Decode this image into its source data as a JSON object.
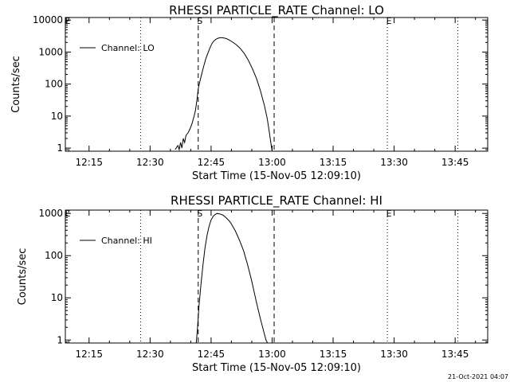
{
  "footer": {
    "timestamp": "21-Oct-2021 04:07"
  },
  "chart_data": [
    {
      "type": "line",
      "title": "RHESSI PARTICLE_RATE Channel: LO",
      "xlabel": "Start Time (15-Nov-05 12:09:10)",
      "ylabel": "Counts/sec",
      "y_scale": "log",
      "xlim": [
        "12:09:10",
        "13:53:00"
      ],
      "ylim": [
        0.8,
        12000
      ],
      "x_ticks": [
        "12:15",
        "12:30",
        "12:45",
        "13:00",
        "13:15",
        "13:30",
        "13:45"
      ],
      "y_ticks": [
        {
          "value": 1,
          "label": "1"
        },
        {
          "value": 10,
          "label": "10"
        },
        {
          "value": 100,
          "label": "100"
        },
        {
          "value": 1000,
          "label": "1000"
        },
        {
          "value": 10000,
          "label": "10000"
        }
      ],
      "legend": {
        "position": "top-left",
        "entries": [
          "Channel: LO"
        ]
      },
      "markers": [
        {
          "time": "12:27:40",
          "style": "dotted",
          "label": ""
        },
        {
          "time": "12:41:50",
          "style": "dashed",
          "label": "S"
        },
        {
          "time": "13:00:30",
          "style": "dashed",
          "label": ""
        },
        {
          "time": "13:28:20",
          "style": "dotted",
          "label": "E"
        },
        {
          "time": "13:45:40",
          "style": "dotted",
          "label": ""
        }
      ],
      "corner_label": "E",
      "series": [
        {
          "name": "Channel: LO",
          "x": [
            "12:36:10",
            "12:36:50",
            "12:37:10",
            "12:37:30",
            "12:37:50",
            "12:38:10",
            "12:38:30",
            "12:38:50",
            "12:39:20",
            "12:39:50",
            "12:40:20",
            "12:40:50",
            "12:41:10",
            "12:41:30",
            "12:41:50",
            "12:42:10",
            "12:42:40",
            "12:43:10",
            "12:43:40",
            "12:44:10",
            "12:44:40",
            "12:45:10",
            "12:45:40",
            "12:46:10",
            "12:46:40",
            "12:47:10",
            "12:47:40",
            "12:48:10",
            "12:48:40",
            "12:49:10",
            "12:49:40",
            "12:50:10",
            "12:51:10",
            "12:52:10",
            "12:53:10",
            "12:54:10",
            "12:55:10",
            "12:56:10",
            "12:57:10",
            "12:58:10",
            "12:58:50",
            "12:59:20",
            "12:59:40",
            "13:00:00"
          ],
          "y": [
            0.9,
            1.2,
            0.9,
            1.5,
            1.0,
            2.0,
            1.5,
            2.5,
            3.0,
            4.0,
            6.0,
            10,
            15,
            30,
            70,
            110,
            200,
            350,
            600,
            900,
            1300,
            1800,
            2200,
            2500,
            2700,
            2800,
            2800,
            2750,
            2650,
            2500,
            2300,
            2100,
            1700,
            1300,
            900,
            550,
            300,
            150,
            60,
            20,
            8,
            3,
            1.5,
            0.8
          ]
        }
      ]
    },
    {
      "type": "line",
      "title": "RHESSI PARTICLE_RATE Channel: HI",
      "xlabel": "Start Time (15-Nov-05 12:09:10)",
      "ylabel": "Counts/sec",
      "y_scale": "log",
      "xlim": [
        "12:09:10",
        "13:53:00"
      ],
      "ylim": [
        0.85,
        1200
      ],
      "x_ticks": [
        "12:15",
        "12:30",
        "12:45",
        "13:00",
        "13:15",
        "13:30",
        "13:45"
      ],
      "y_ticks": [
        {
          "value": 1,
          "label": "1"
        },
        {
          "value": 10,
          "label": "10"
        },
        {
          "value": 100,
          "label": "100"
        },
        {
          "value": 1000,
          "label": "1000"
        }
      ],
      "legend": {
        "position": "top-left",
        "entries": [
          "Channel: HI"
        ]
      },
      "markers": [
        {
          "time": "12:27:40",
          "style": "dotted",
          "label": ""
        },
        {
          "time": "12:41:50",
          "style": "dashed",
          "label": "S"
        },
        {
          "time": "13:00:30",
          "style": "dashed",
          "label": ""
        },
        {
          "time": "13:28:20",
          "style": "dotted",
          "label": "E"
        },
        {
          "time": "13:45:40",
          "style": "dotted",
          "label": ""
        }
      ],
      "corner_label": "E",
      "series": [
        {
          "name": "Channel: HI",
          "x": [
            "12:41:20",
            "12:41:40",
            "12:42:00",
            "12:42:30",
            "12:43:00",
            "12:43:30",
            "12:44:00",
            "12:44:30",
            "12:45:00",
            "12:45:30",
            "12:46:00",
            "12:46:30",
            "12:47:00",
            "12:47:30",
            "12:48:00",
            "12:48:30",
            "12:49:00",
            "12:49:30",
            "12:50:00",
            "12:51:00",
            "12:52:00",
            "12:53:00",
            "12:54:00",
            "12:55:00",
            "12:56:00",
            "12:57:00",
            "12:58:00",
            "12:58:30",
            "12:59:00"
          ],
          "y": [
            0.8,
            2.0,
            6.0,
            20,
            60,
            150,
            300,
            500,
            700,
            850,
            950,
            1000,
            980,
            950,
            900,
            820,
            740,
            660,
            560,
            380,
            230,
            130,
            60,
            25,
            9,
            3.5,
            1.5,
            1.0,
            0.8
          ]
        }
      ]
    }
  ]
}
